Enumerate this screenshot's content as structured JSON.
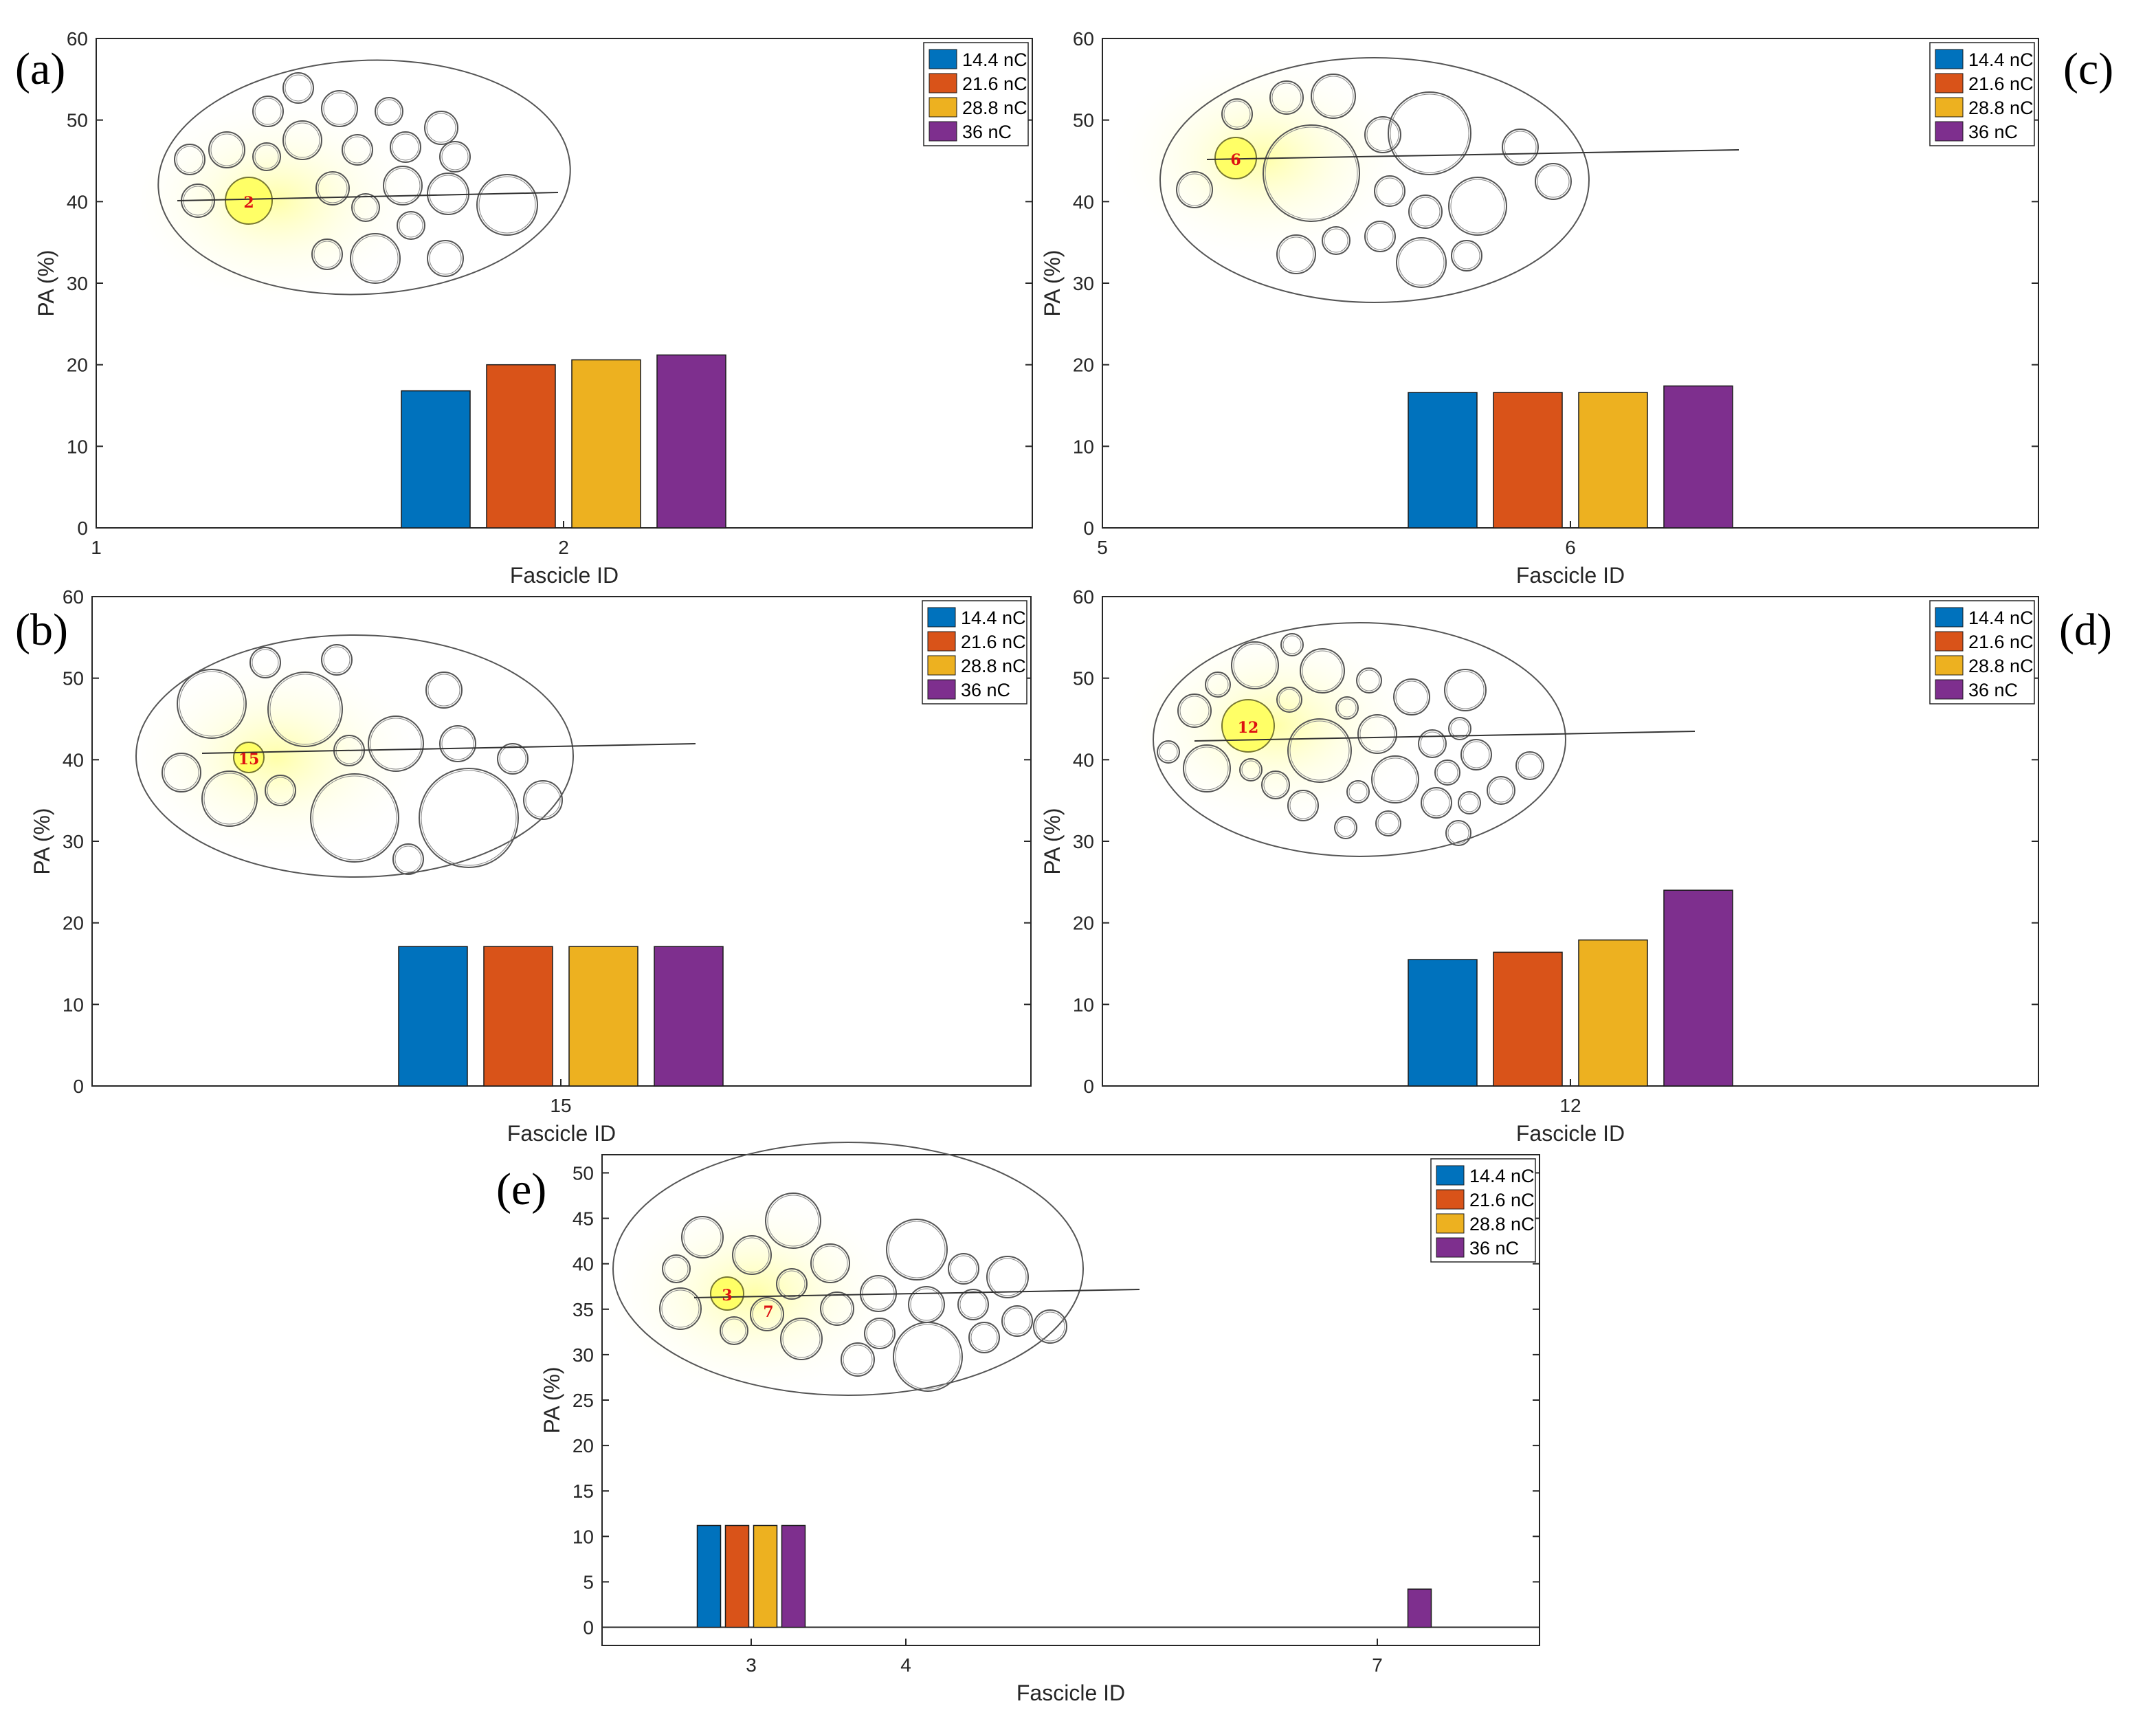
{
  "colors": {
    "14.4 nC": "#0072BD",
    "21.6 nC": "#D95319",
    "28.8 nC": "#EDB120",
    "36 nC": "#7E2F8E",
    "highlight": "#ffff66"
  },
  "chart_data": [
    {
      "type": "bar",
      "panel_label": "(a)",
      "xlabel": "Fascicle ID",
      "ylabel": "PA (%)",
      "x_ticks": [
        "1",
        "2"
      ],
      "y_ticks": [
        "0",
        "10",
        "20",
        "30",
        "40",
        "50",
        "60"
      ],
      "ylim": [
        0,
        60
      ],
      "legend": [
        "14.4 nC",
        "21.6 nC",
        "28.8 nC",
        "36 nC"
      ],
      "legend_position": "top-right",
      "categories": [
        "2"
      ],
      "series": [
        {
          "name": "14.4 nC",
          "values": [
            16.8
          ]
        },
        {
          "name": "21.6 nC",
          "values": [
            20.0
          ]
        },
        {
          "name": "28.8 nC",
          "values": [
            20.6
          ]
        },
        {
          "name": "36 nC",
          "values": [
            21.2
          ]
        }
      ],
      "inset_labels": [
        "2"
      ]
    },
    {
      "type": "bar",
      "panel_label": "(c)",
      "xlabel": "Fascicle ID",
      "ylabel": "PA (%)",
      "x_ticks": [
        "5",
        "6"
      ],
      "y_ticks": [
        "0",
        "10",
        "20",
        "30",
        "40",
        "50",
        "60"
      ],
      "ylim": [
        0,
        60
      ],
      "legend": [
        "14.4 nC",
        "21.6 nC",
        "28.8 nC",
        "36 nC"
      ],
      "legend_position": "top-right",
      "categories": [
        "6"
      ],
      "series": [
        {
          "name": "14.4 nC",
          "values": [
            16.6
          ]
        },
        {
          "name": "21.6 nC",
          "values": [
            16.6
          ]
        },
        {
          "name": "28.8 nC",
          "values": [
            16.6
          ]
        },
        {
          "name": "36 nC",
          "values": [
            17.4
          ]
        }
      ],
      "inset_labels": [
        "6"
      ]
    },
    {
      "type": "bar",
      "panel_label": "(b)",
      "xlabel": "Fascicle ID",
      "ylabel": "PA (%)",
      "x_ticks": [
        "15"
      ],
      "y_ticks": [
        "0",
        "10",
        "20",
        "30",
        "40",
        "50",
        "60"
      ],
      "ylim": [
        0,
        60
      ],
      "legend": [
        "14.4 nC",
        "21.6 nC",
        "28.8 nC",
        "36 nC"
      ],
      "legend_position": "top-right",
      "categories": [
        "15"
      ],
      "series": [
        {
          "name": "14.4 nC",
          "values": [
            17.1
          ]
        },
        {
          "name": "21.6 nC",
          "values": [
            17.1
          ]
        },
        {
          "name": "28.8 nC",
          "values": [
            17.1
          ]
        },
        {
          "name": "36 nC",
          "values": [
            17.1
          ]
        }
      ],
      "inset_labels": [
        "15"
      ]
    },
    {
      "type": "bar",
      "panel_label": "(d)",
      "xlabel": "Fascicle ID",
      "ylabel": "PA (%)",
      "x_ticks": [
        "12"
      ],
      "y_ticks": [
        "0",
        "10",
        "20",
        "30",
        "40",
        "50",
        "60"
      ],
      "ylim": [
        0,
        60
      ],
      "legend": [
        "14.4 nC",
        "21.6 nC",
        "28.8 nC",
        "36 nC"
      ],
      "legend_position": "top-right",
      "categories": [
        "12"
      ],
      "series": [
        {
          "name": "14.4 nC",
          "values": [
            15.5
          ]
        },
        {
          "name": "21.6 nC",
          "values": [
            16.4
          ]
        },
        {
          "name": "28.8 nC",
          "values": [
            17.9
          ]
        },
        {
          "name": "36 nC",
          "values": [
            24.0
          ]
        }
      ],
      "inset_labels": [
        "12"
      ]
    },
    {
      "type": "bar",
      "panel_label": "(e)",
      "xlabel": "Fascicle ID",
      "ylabel": "PA (%)",
      "x_ticks": [
        "3",
        "4",
        "7"
      ],
      "y_ticks": [
        "0",
        "5",
        "10",
        "15",
        "20",
        "25",
        "30",
        "35",
        "40",
        "45",
        "50"
      ],
      "ylim": [
        -2,
        52
      ],
      "legend": [
        "14.4 nC",
        "21.6 nC",
        "28.8 nC",
        "36 nC"
      ],
      "legend_position": "top-right",
      "categories": [
        "3",
        "7"
      ],
      "series": [
        {
          "name": "14.4 nC",
          "values": [
            11.2,
            0
          ]
        },
        {
          "name": "21.6 nC",
          "values": [
            11.2,
            0
          ]
        },
        {
          "name": "28.8 nC",
          "values": [
            11.2,
            0
          ]
        },
        {
          "name": "36 nC",
          "values": [
            11.2,
            4.2
          ]
        }
      ],
      "inset_labels": [
        "3",
        "7"
      ]
    }
  ]
}
